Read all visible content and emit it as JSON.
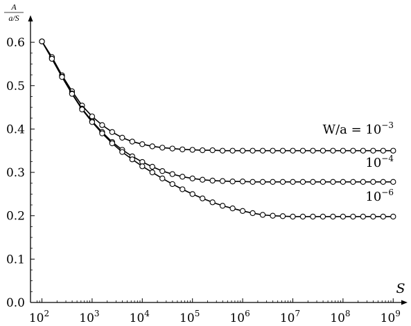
{
  "chart_data": {
    "type": "line",
    "xscale": "log",
    "xlim": [
      80,
      1000000000
    ],
    "ylim": [
      0,
      0.68
    ],
    "yticks": [
      "0.0",
      "0.1",
      "0.2",
      "0.3",
      "0.4",
      "0.5",
      "0.6"
    ],
    "xticks": [
      {
        "base": "10",
        "exp": "2"
      },
      {
        "base": "10",
        "exp": "3"
      },
      {
        "base": "10",
        "exp": "4"
      },
      {
        "base": "10",
        "exp": "5"
      },
      {
        "base": "10",
        "exp": "6"
      },
      {
        "base": "10",
        "exp": "7"
      },
      {
        "base": "10",
        "exp": "8"
      },
      {
        "base": "10",
        "exp": "9"
      }
    ],
    "xlabel": "S",
    "ylabel": {
      "numerator": "A",
      "denominator": "a/S"
    },
    "marker": "open-circle",
    "grid": false,
    "series": [
      {
        "label_main": "W/a = 10",
        "label_exp": "−3",
        "plateau": 0.35,
        "x": [
          100,
          158,
          251,
          398,
          631,
          1000,
          1585,
          2512,
          3981,
          6310,
          10000,
          15849,
          25119,
          39811,
          63096,
          100000,
          158489,
          251189,
          398107,
          630957,
          1000000,
          1584893,
          2511886,
          3981072,
          6309573,
          10000000,
          15848932,
          25118864,
          39810717,
          63095734,
          100000000,
          158489319,
          251188643,
          398107171,
          630957344,
          1000000000
        ],
        "y": [
          0.602,
          0.566,
          0.524,
          0.487,
          0.454,
          0.429,
          0.409,
          0.393,
          0.38,
          0.371,
          0.365,
          0.36,
          0.357,
          0.355,
          0.353,
          0.352,
          0.351,
          0.351,
          0.35,
          0.35,
          0.35,
          0.35,
          0.35,
          0.35,
          0.35,
          0.35,
          0.35,
          0.35,
          0.35,
          0.35,
          0.35,
          0.35,
          0.35,
          0.35,
          0.35,
          0.35
        ]
      },
      {
        "label_main": "10",
        "label_exp": "−4",
        "plateau": 0.278,
        "x": [
          100,
          158,
          251,
          398,
          631,
          1000,
          1585,
          2512,
          3981,
          6310,
          10000,
          15849,
          25119,
          39811,
          63096,
          100000,
          158489,
          251189,
          398107,
          630957,
          1000000,
          1584893,
          2511886,
          3981072,
          6309573,
          10000000,
          15848932,
          25118864,
          39810717,
          63095734,
          100000000,
          158489319,
          251188643,
          398107171,
          630957344,
          1000000000
        ],
        "y": [
          0.602,
          0.562,
          0.521,
          0.482,
          0.447,
          0.418,
          0.393,
          0.37,
          0.352,
          0.337,
          0.324,
          0.313,
          0.303,
          0.296,
          0.29,
          0.286,
          0.283,
          0.281,
          0.28,
          0.279,
          0.279,
          0.278,
          0.278,
          0.278,
          0.278,
          0.278,
          0.278,
          0.278,
          0.278,
          0.278,
          0.278,
          0.278,
          0.278,
          0.278,
          0.278,
          0.278
        ]
      },
      {
        "label_main": "10",
        "label_exp": "−6",
        "plateau": 0.198,
        "x": [
          100,
          158,
          251,
          398,
          631,
          1000,
          1585,
          2512,
          3981,
          6310,
          10000,
          15849,
          25119,
          39811,
          63096,
          100000,
          158489,
          251189,
          398107,
          630957,
          1000000,
          1584893,
          2511886,
          3981072,
          6309573,
          10000000,
          15848932,
          25118864,
          39810717,
          63095734,
          100000000,
          158489319,
          251188643,
          398107171,
          630957344,
          1000000000
        ],
        "y": [
          0.602,
          0.562,
          0.52,
          0.481,
          0.445,
          0.416,
          0.39,
          0.367,
          0.347,
          0.33,
          0.314,
          0.3,
          0.286,
          0.273,
          0.261,
          0.25,
          0.24,
          0.231,
          0.223,
          0.217,
          0.211,
          0.206,
          0.202,
          0.2,
          0.199,
          0.198,
          0.198,
          0.198,
          0.198,
          0.198,
          0.198,
          0.198,
          0.198,
          0.198,
          0.198,
          0.198
        ]
      }
    ]
  }
}
